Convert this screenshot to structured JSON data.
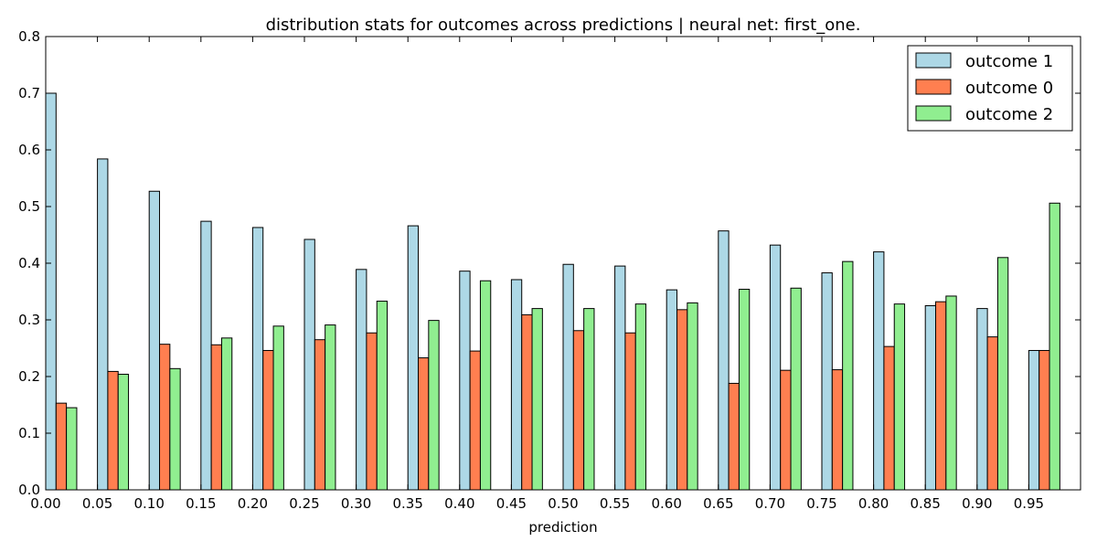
{
  "chart_data": {
    "type": "bar",
    "title": "distribution stats for outcomes across predictions | neural net: first_one.",
    "xlabel": "prediction",
    "ylabel": "",
    "x_ticks": [
      "0.00",
      "0.05",
      "0.10",
      "0.15",
      "0.20",
      "0.25",
      "0.30",
      "0.35",
      "0.40",
      "0.45",
      "0.50",
      "0.55",
      "0.60",
      "0.65",
      "0.70",
      "0.75",
      "0.80",
      "0.85",
      "0.90",
      "0.95"
    ],
    "y_ticks": [
      "0.0",
      "0.1",
      "0.2",
      "0.3",
      "0.4",
      "0.5",
      "0.6",
      "0.7",
      "0.8"
    ],
    "xlim": [
      0.0,
      1.0
    ],
    "ylim": [
      0.0,
      0.8
    ],
    "grid": false,
    "legend_position": "top-right",
    "categories": [
      0.0,
      0.05,
      0.1,
      0.15,
      0.2,
      0.25,
      0.3,
      0.35,
      0.4,
      0.45,
      0.5,
      0.55,
      0.6,
      0.65,
      0.7,
      0.75,
      0.8,
      0.85,
      0.9,
      0.95
    ],
    "series": [
      {
        "name": "outcome 1",
        "color": "#add8e6",
        "values": [
          0.7,
          0.584,
          0.527,
          0.474,
          0.463,
          0.442,
          0.389,
          0.466,
          0.386,
          0.371,
          0.398,
          0.395,
          0.353,
          0.457,
          0.432,
          0.383,
          0.42,
          0.325,
          0.32,
          0.246
        ]
      },
      {
        "name": "outcome 0",
        "color": "#ff7f50",
        "values": [
          0.153,
          0.209,
          0.257,
          0.256,
          0.246,
          0.265,
          0.277,
          0.233,
          0.245,
          0.309,
          0.281,
          0.277,
          0.318,
          0.188,
          0.211,
          0.212,
          0.253,
          0.332,
          0.27,
          0.246
        ]
      },
      {
        "name": "outcome 2",
        "color": "#90ee90",
        "values": [
          0.145,
          0.204,
          0.214,
          0.268,
          0.289,
          0.291,
          0.333,
          0.299,
          0.369,
          0.32,
          0.32,
          0.328,
          0.33,
          0.354,
          0.356,
          0.403,
          0.328,
          0.342,
          0.41,
          0.506
        ]
      }
    ]
  }
}
